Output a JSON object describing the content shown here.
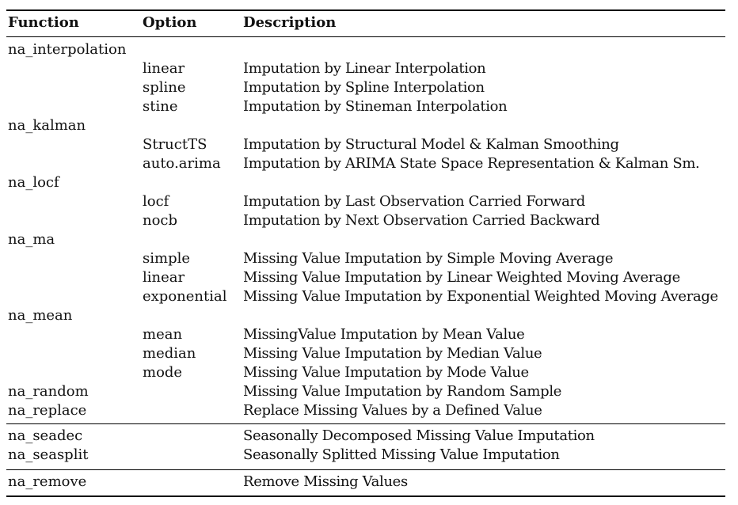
{
  "table": {
    "headers": {
      "function": "Function",
      "option": "Option",
      "description": "Description"
    },
    "groups": [
      {
        "rows": [
          {
            "function": "na_interpolation",
            "option": "",
            "description": ""
          },
          {
            "function": "",
            "option": "linear",
            "description": "Imputation by Linear Interpolation"
          },
          {
            "function": "",
            "option": "spline",
            "description": "Imputation by Spline Interpolation"
          },
          {
            "function": "",
            "option": "stine",
            "description": "Imputation by Stineman Interpolation"
          },
          {
            "function": "na_kalman",
            "option": "",
            "description": ""
          },
          {
            "function": "",
            "option": "StructTS",
            "description": "Imputation by Structural Model & Kalman Smoothing"
          },
          {
            "function": "",
            "option": "auto.arima",
            "description": "Imputation by ARIMA State Space Representation & Kalman Sm."
          },
          {
            "function": "na_locf",
            "option": "",
            "description": ""
          },
          {
            "function": "",
            "option": "locf",
            "description": "Imputation by Last Observation Carried Forward"
          },
          {
            "function": "",
            "option": "nocb",
            "description": "Imputation by Next Observation Carried Backward"
          },
          {
            "function": "na_ma",
            "option": "",
            "description": ""
          },
          {
            "function": "",
            "option": "simple",
            "description": "Missing Value Imputation by Simple Moving Average"
          },
          {
            "function": "",
            "option": "linear",
            "description": "Missing Value Imputation by Linear Weighted Moving Average"
          },
          {
            "function": "",
            "option": "exponential",
            "description": "Missing Value Imputation by Exponential Weighted Moving Average"
          },
          {
            "function": "na_mean",
            "option": "",
            "description": ""
          },
          {
            "function": "",
            "option": "mean",
            "description": "MissingValue Imputation by Mean Value"
          },
          {
            "function": "",
            "option": "median",
            "description": "Missing Value Imputation by Median Value"
          },
          {
            "function": "",
            "option": "mode",
            "description": "Missing Value Imputation by Mode Value"
          },
          {
            "function": "na_random",
            "option": "",
            "description": "Missing Value Imputation by Random Sample"
          },
          {
            "function": "na_replace",
            "option": "",
            "description": "Replace Missing Values by a Defined Value"
          }
        ]
      },
      {
        "rows": [
          {
            "function": "na_seadec",
            "option": "",
            "description": "Seasonally Decomposed Missing Value Imputation"
          },
          {
            "function": "na_seasplit",
            "option": "",
            "description": "Seasonally Splitted Missing Value Imputation"
          }
        ]
      },
      {
        "rows": [
          {
            "function": "na_remove",
            "option": "",
            "description": "Remove Missing Values"
          }
        ]
      }
    ]
  }
}
